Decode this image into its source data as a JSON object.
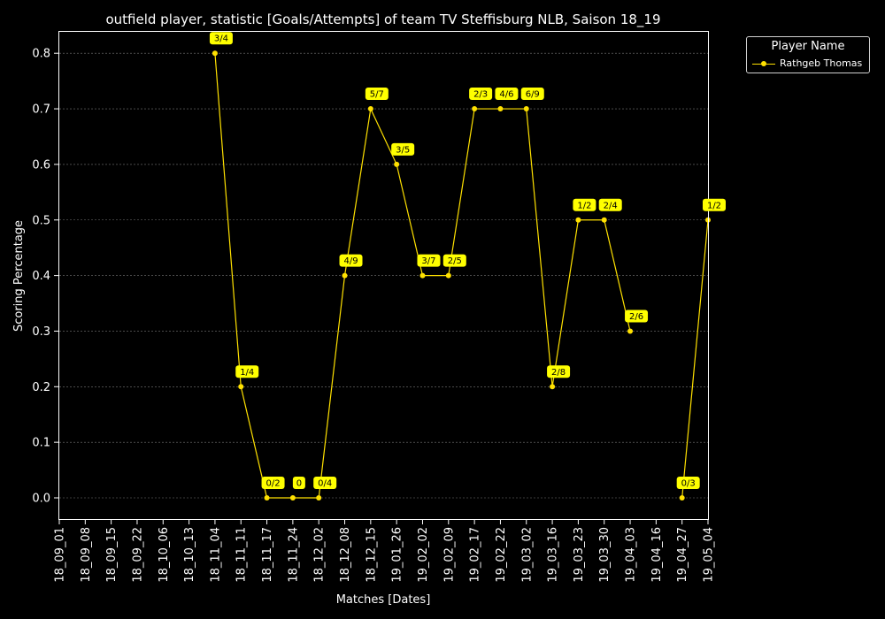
{
  "colors": {
    "background": "#000000",
    "axis": "#ffffff",
    "grid": "#777777",
    "series": "#ffe100",
    "label_box": "#ffff00",
    "label_text": "#000000"
  },
  "chart_data": {
    "type": "line",
    "title": "outfield player, statistic [Goals/Attempts] of team TV Steffisburg NLB, Saison 18_19",
    "xlabel": "Matches [Dates]",
    "ylabel": "Scoring Percentage",
    "ylim": [
      -0.04,
      0.84
    ],
    "yticks": [
      0.0,
      0.1,
      0.2,
      0.3,
      0.4,
      0.5,
      0.6,
      0.7,
      0.8
    ],
    "ytick_labels": [
      "0.0",
      "0.1",
      "0.2",
      "0.3",
      "0.4",
      "0.5",
      "0.6",
      "0.7",
      "0.8"
    ],
    "grid": true,
    "legend_position": "outside-top-right",
    "legend_title": "Player Name",
    "categories": [
      "18_09_01",
      "18_09_08",
      "18_09_15",
      "18_09_22",
      "18_10_06",
      "18_10_13",
      "18_11_04",
      "18_11_11",
      "18_11_17",
      "18_11_24",
      "18_12_02",
      "18_12_08",
      "18_12_15",
      "19_01_26",
      "19_02_02",
      "19_02_09",
      "19_02_17",
      "19_02_22",
      "19_03_02",
      "19_03_16",
      "19_03_23",
      "19_03_30",
      "19_04_03",
      "19_04_16",
      "19_04_27",
      "19_05_04"
    ],
    "series": [
      {
        "name": "Rathgeb Thomas",
        "values": [
          null,
          null,
          null,
          null,
          null,
          null,
          0.8,
          0.2,
          0.0,
          0.0,
          0.0,
          0.4,
          0.7,
          0.6,
          0.4,
          0.4,
          0.7,
          0.7,
          0.7,
          0.2,
          0.5,
          0.5,
          0.3,
          null,
          0.0,
          0.5
        ],
        "labels": [
          null,
          null,
          null,
          null,
          null,
          null,
          "3/4",
          "1/4",
          "0/2",
          "0",
          "0/4",
          "4/9",
          "5/7",
          "3/5",
          "3/7",
          "2/5",
          "2/3",
          "4/6",
          "6/9",
          "2/8",
          "1/2",
          "2/4",
          "2/6",
          null,
          "0/3",
          "1/2"
        ]
      }
    ]
  }
}
